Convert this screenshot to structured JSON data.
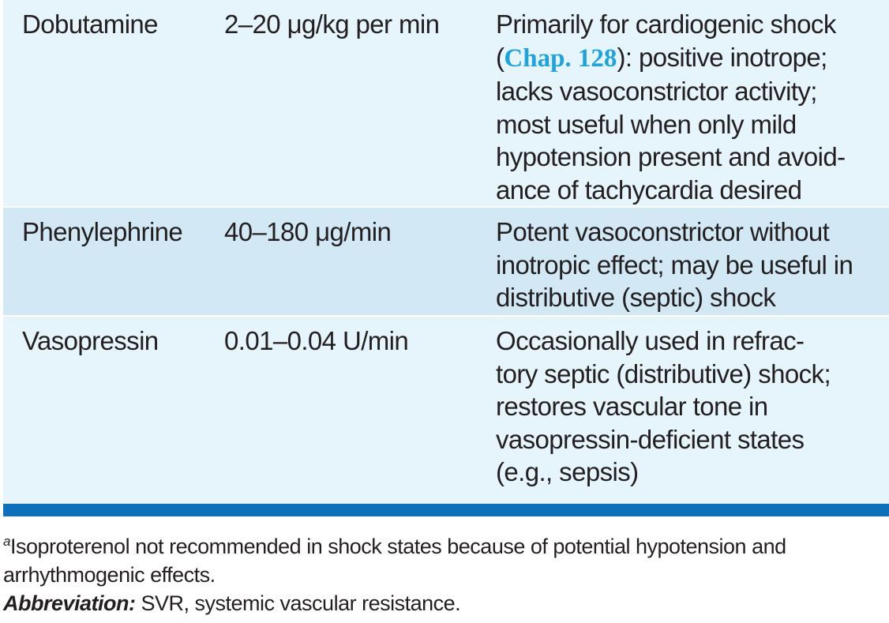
{
  "table": {
    "rows": [
      {
        "drug": "Dobutamine",
        "dose": "2–20 μg/kg per min",
        "comment_lines": [
          "",
          "): positive inotrope;",
          "lacks vasoconstrictor activity;",
          "most useful when only mild",
          "hypotension present and avoid-",
          "ance of tachycardia desired"
        ],
        "comment_line1": "Primarily for cardiogenic shock",
        "comment_line2_open": "(",
        "chapter_ref": "Chap. 128"
      },
      {
        "drug": "Phenylephrine",
        "dose": "40–180 μg/min",
        "comment_lines": [
          "Potent vasoconstrictor without",
          "inotropic effect; may be useful in",
          "distributive (septic) shock"
        ]
      },
      {
        "drug": "Vasopressin",
        "dose": "0.01–0.04 U/min",
        "comment_lines": [
          "Occasionally used in refrac-",
          "tory septic (distributive) shock;",
          "restores vascular tone in",
          "vasopressin-deficient states",
          "(e.g., sepsis)"
        ]
      }
    ]
  },
  "footnotes": {
    "note_marker": "a",
    "note_line1": "Isoproterenol not recommended in shock states because of potential hypotension and",
    "note_line2": "arrhythmogenic effects.",
    "abbreviation_label": "Abbreviation:",
    "abbreviation_text": " SVR, systemic vascular resistance."
  },
  "colors": {
    "row_light": "#e6f4fb",
    "row_alt": "#d2e8f5",
    "rule": "#0e6fbb",
    "link": "#1fa3dd"
  }
}
